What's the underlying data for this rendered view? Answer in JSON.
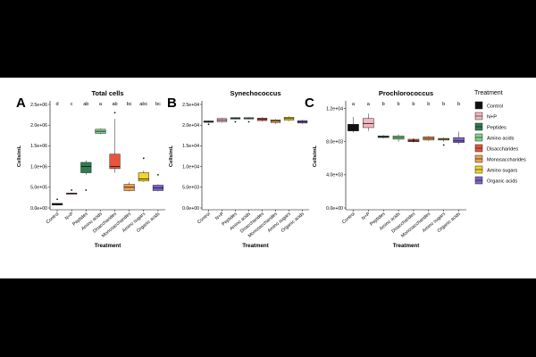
{
  "figure": {
    "legend_title": "Treatment",
    "treatments": [
      {
        "name": "Control",
        "color": "#111111"
      },
      {
        "name": "N+P",
        "color": "#f4b6c2"
      },
      {
        "name": "Peptides",
        "color": "#2e7d4f"
      },
      {
        "name": "Amino acids",
        "color": "#7dd68a"
      },
      {
        "name": "Disaccharides",
        "color": "#e8553e"
      },
      {
        "name": "Monosaccharides",
        "color": "#f0a050"
      },
      {
        "name": "Amino sugars",
        "color": "#f5d327"
      },
      {
        "name": "Organic acids",
        "color": "#7f63c9"
      }
    ]
  },
  "chart_data": [
    {
      "panel": "A",
      "type": "box",
      "title": "Total cells",
      "xlabel": "Treatment",
      "ylabel": "Cells/mL",
      "ylim": [
        0,
        2500000
      ],
      "yticks": [
        "0.0e+00",
        "5.0e+05",
        "1.0e+06",
        "1.5e+06",
        "2.0e+06",
        "2.5e+06"
      ],
      "ytick_values": [
        0,
        500000,
        1000000,
        1500000,
        2000000,
        2500000
      ],
      "categories": [
        "Control",
        "N+P",
        "Peptides",
        "Amino acids",
        "Disaccharides",
        "Monosaccharides",
        "Amino sugars",
        "Organic acids"
      ],
      "letters": [
        "d",
        "c",
        "ab",
        "a",
        "ab",
        "bc",
        "abc",
        "bc"
      ],
      "boxes": [
        {
          "min": 60000,
          "q1": 70000,
          "median": 100000,
          "q3": 110000,
          "max": 120000,
          "outliers": [
            210000
          ]
        },
        {
          "min": 330000,
          "q1": 340000,
          "median": 350000,
          "q3": 360000,
          "max": 370000,
          "outliers": [
            430000
          ]
        },
        {
          "min": 800000,
          "q1": 850000,
          "median": 1000000,
          "q3": 1100000,
          "max": 1150000,
          "outliers": [
            430000
          ]
        },
        {
          "min": 1780000,
          "q1": 1800000,
          "median": 1850000,
          "q3": 1900000,
          "max": 1920000,
          "outliers": []
        },
        {
          "min": 850000,
          "q1": 950000,
          "median": 1000000,
          "q3": 1300000,
          "max": 2150000,
          "outliers": [
            2300000
          ]
        },
        {
          "min": 400000,
          "q1": 420000,
          "median": 500000,
          "q3": 570000,
          "max": 620000,
          "outliers": []
        },
        {
          "min": 630000,
          "q1": 650000,
          "median": 700000,
          "q3": 850000,
          "max": 900000,
          "outliers": [
            1200000
          ]
        },
        {
          "min": 400000,
          "q1": 420000,
          "median": 480000,
          "q3": 550000,
          "max": 570000,
          "outliers": [
            800000
          ]
        }
      ]
    },
    {
      "panel": "B",
      "type": "box",
      "title": "Synechococcus",
      "xlabel": "Treatment",
      "ylabel": "Cells/mL",
      "ylim": [
        0,
        25000
      ],
      "yticks": [
        "0.0e+00",
        "5.0e+03",
        "1.0e+04",
        "1.5e+04",
        "2.0e+04",
        "2.5e+04"
      ],
      "ytick_values": [
        0,
        5000,
        10000,
        15000,
        20000,
        25000
      ],
      "categories": [
        "Control",
        "N+P",
        "Peptides",
        "Amino acids",
        "Disaccharides",
        "Monosaccharides",
        "Amino sugars",
        "Organic acids"
      ],
      "letters": [],
      "boxes": [
        {
          "min": 20600,
          "q1": 20700,
          "median": 20900,
          "q3": 21000,
          "max": 21100,
          "outliers": [
            20200
          ]
        },
        {
          "min": 20600,
          "q1": 20800,
          "median": 21200,
          "q3": 21600,
          "max": 21800,
          "outliers": []
        },
        {
          "min": 21400,
          "q1": 21500,
          "median": 21700,
          "q3": 21800,
          "max": 21900,
          "outliers": [
            20800
          ]
        },
        {
          "min": 21400,
          "q1": 21500,
          "median": 21700,
          "q3": 21800,
          "max": 21900,
          "outliers": [
            20800
          ]
        },
        {
          "min": 20900,
          "q1": 21100,
          "median": 21400,
          "q3": 21700,
          "max": 21900,
          "outliers": []
        },
        {
          "min": 20300,
          "q1": 20600,
          "median": 21000,
          "q3": 21300,
          "max": 21500,
          "outliers": []
        },
        {
          "min": 21000,
          "q1": 21200,
          "median": 21600,
          "q3": 21900,
          "max": 22100,
          "outliers": []
        },
        {
          "min": 20300,
          "q1": 20500,
          "median": 20800,
          "q3": 21100,
          "max": 21300,
          "outliers": []
        }
      ]
    },
    {
      "panel": "C",
      "type": "box",
      "title": "Prochlorococcus",
      "xlabel": "Treatment",
      "ylabel": "Cells/mL",
      "ylim": [
        0,
        12500
      ],
      "yticks": [
        "0.0e+00",
        "4.0e+03",
        "8.0e+03",
        "1.2e+04"
      ],
      "ytick_values": [
        0,
        4000,
        8000,
        12000
      ],
      "categories": [
        "Control",
        "N+P",
        "Peptides",
        "Amino acids",
        "Disaccharides",
        "Monosaccharides",
        "Amino sugars",
        "Organic acids"
      ],
      "letters": [
        "a",
        "a",
        "b",
        "b",
        "b",
        "b",
        "b",
        "b"
      ],
      "boxes": [
        {
          "min": 9100,
          "q1": 9300,
          "median": 9800,
          "q3": 10100,
          "max": 11000,
          "outliers": []
        },
        {
          "min": 9300,
          "q1": 9700,
          "median": 10200,
          "q3": 10800,
          "max": 11400,
          "outliers": []
        },
        {
          "min": 8400,
          "q1": 8500,
          "median": 8600,
          "q3": 8700,
          "max": 8800,
          "outliers": []
        },
        {
          "min": 8000,
          "q1": 8300,
          "median": 8500,
          "q3": 8700,
          "max": 8900,
          "outliers": []
        },
        {
          "min": 7900,
          "q1": 8000,
          "median": 8100,
          "q3": 8300,
          "max": 8400,
          "outliers": [
            8200
          ]
        },
        {
          "min": 8100,
          "q1": 8200,
          "median": 8400,
          "q3": 8600,
          "max": 8700,
          "outliers": []
        },
        {
          "min": 8000,
          "q1": 8200,
          "median": 8300,
          "q3": 8400,
          "max": 8500,
          "outliers": [
            7600
          ]
        },
        {
          "min": 7700,
          "q1": 7900,
          "median": 8100,
          "q3": 8500,
          "max": 9200,
          "outliers": []
        }
      ]
    }
  ]
}
